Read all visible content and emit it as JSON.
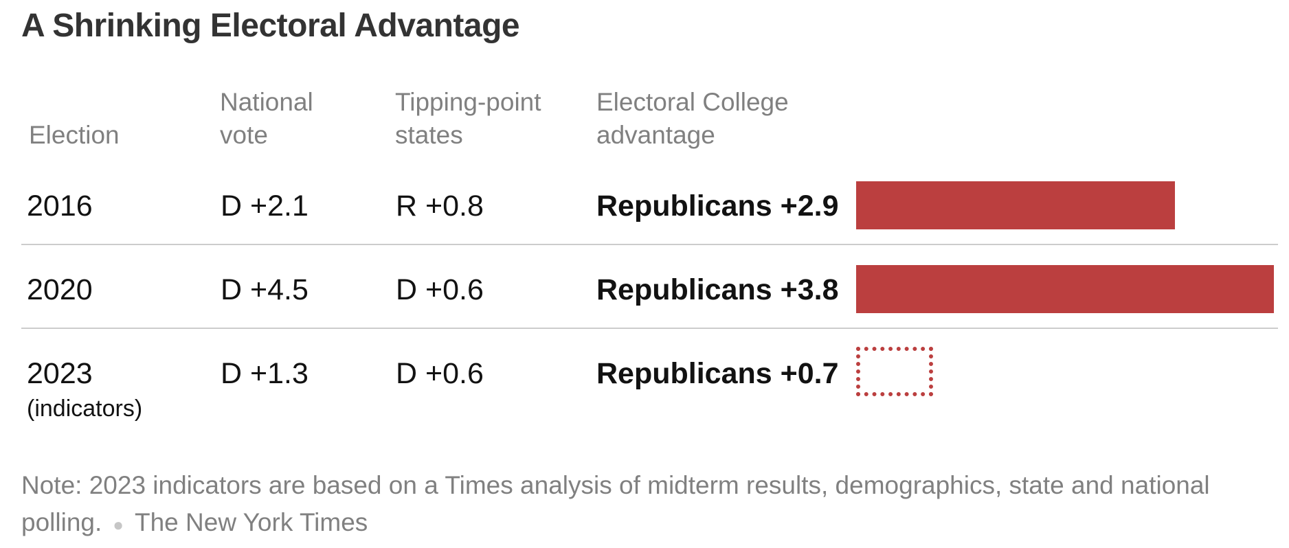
{
  "title": "A Shrinking Electoral Advantage",
  "headers": {
    "election": "Election",
    "national_vote": [
      "National",
      "vote"
    ],
    "tipping_point": [
      "Tipping-point",
      "states"
    ],
    "ec_advantage": [
      "Electoral College",
      "advantage"
    ]
  },
  "rows": [
    {
      "election": "2016",
      "sub": "",
      "national_vote": "D +2.1",
      "tipping_point": "R +0.8",
      "advantage_label": "Republicans +2.9"
    },
    {
      "election": "2020",
      "sub": "",
      "national_vote": "D +4.5",
      "tipping_point": "D +0.6",
      "advantage_label": "Republicans +3.8"
    },
    {
      "election": "2023",
      "sub": "(indicators)",
      "national_vote": "D +1.3",
      "tipping_point": "D +0.6",
      "advantage_label": "Republicans +0.7"
    }
  ],
  "note": "Note: 2023 indicators are based on a Times analysis of midterm results, demographics, state and national polling.",
  "source": "The New York Times",
  "colors": {
    "republican": "#bb3f3f"
  },
  "chart_data": {
    "type": "bar",
    "orientation": "horizontal",
    "categories": [
      "2016",
      "2020",
      "2023 (indicators)"
    ],
    "values": [
      2.9,
      3.8,
      0.7
    ],
    "series": [
      {
        "values": [
          2.9,
          3.8,
          0.7
        ],
        "style": [
          "solid",
          "solid",
          "dashed"
        ]
      }
    ],
    "xlim": [
      0,
      3.8
    ],
    "grid": false
  }
}
